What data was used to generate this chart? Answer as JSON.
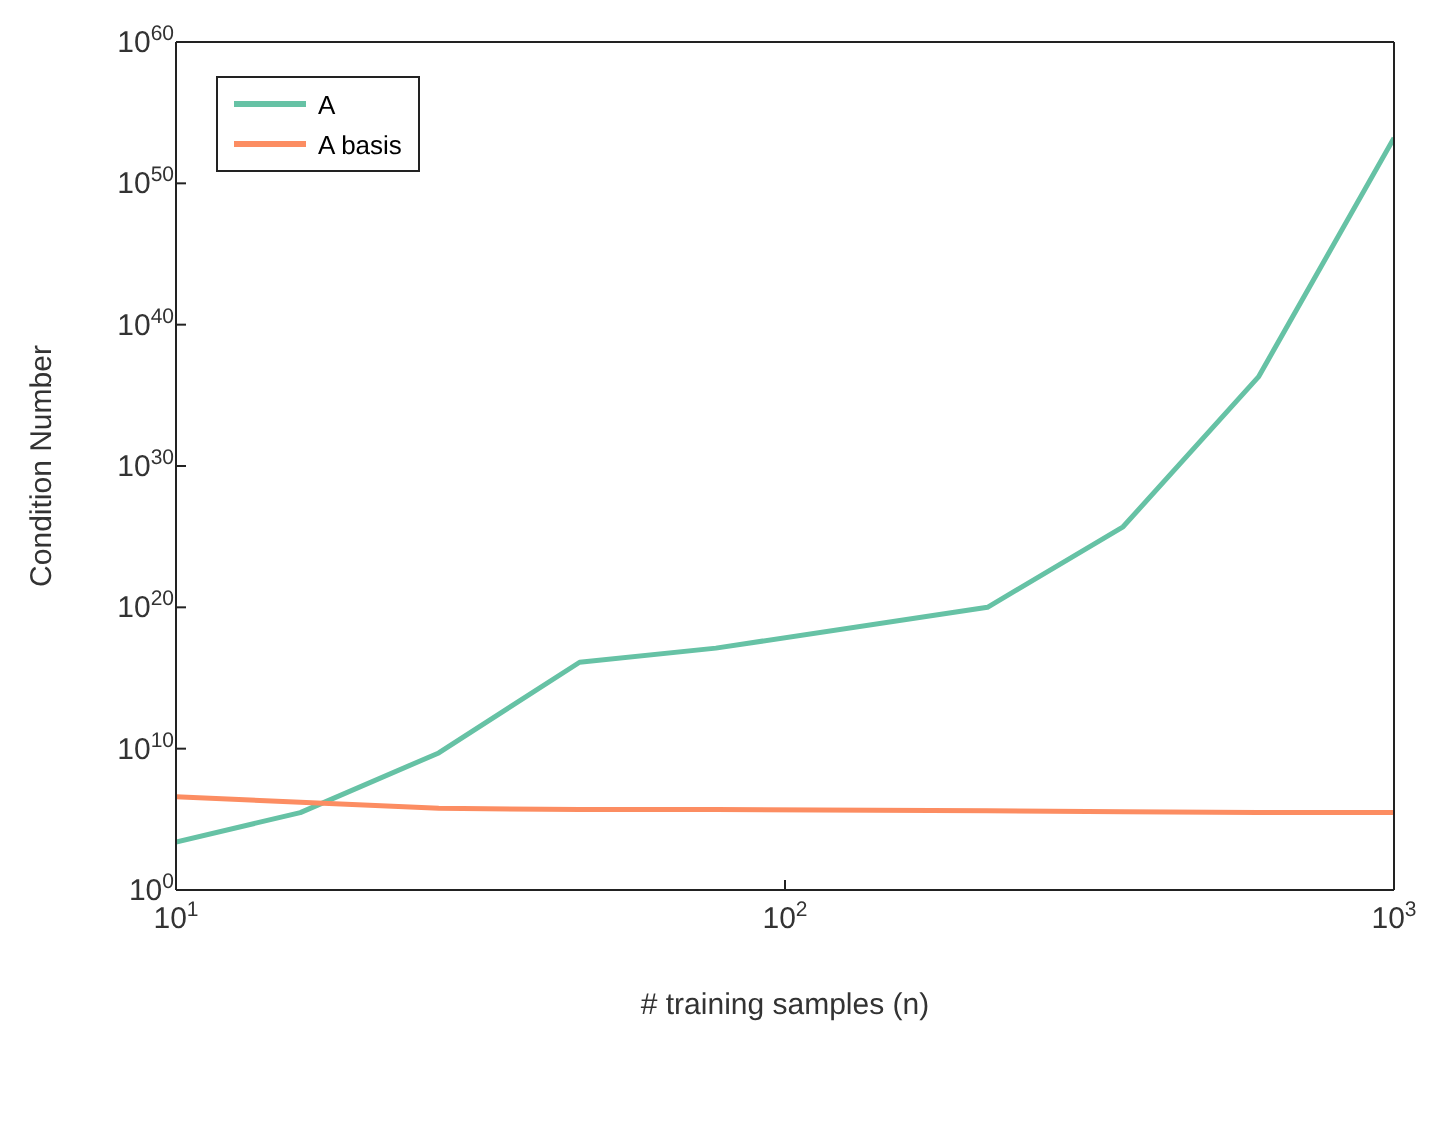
{
  "chart_data": {
    "type": "line",
    "xlabel": "# training samples (n)",
    "ylabel": "Condition Number",
    "x": [
      10,
      16,
      27,
      46,
      77,
      215,
      359,
      599,
      1000
    ],
    "series": [
      {
        "name": "A",
        "color": "#66c2a5",
        "values": [
          2500.0,
          300000.0,
          5000000000.0,
          1.3e+16,
          1.3e+17,
          1e+20,
          5e+25,
          2e+36,
          1.6e+53
        ]
      },
      {
        "name": "A basis",
        "color": "#fc8d62",
        "values": [
          4000000.0,
          1600000.0,
          600000.0,
          500000.0,
          500000.0,
          400000.0,
          350000.0,
          300000.0,
          300000.0
        ]
      }
    ],
    "log": "xy",
    "xlim": [
      10,
      1000
    ],
    "ylim": [
      1,
      1e+60
    ],
    "xticks": [
      {
        "value": 10,
        "label": "10$^{1}$"
      },
      {
        "value": 100,
        "label": "10$^{2}$"
      },
      {
        "value": 1000,
        "label": "10$^{3}$"
      }
    ],
    "yticks": [
      {
        "value": 1,
        "label": "10$^{0}$"
      },
      {
        "value": 10000000000.0,
        "label": "10$^{10}$"
      },
      {
        "value": 1e+20,
        "label": "10$^{20}$"
      },
      {
        "value": 1e+30,
        "label": "10$^{30}$"
      },
      {
        "value": 1e+40,
        "label": "10$^{40}$"
      },
      {
        "value": 1e+50,
        "label": "10$^{50}$"
      },
      {
        "value": 1e+60,
        "label": "10$^{60}$"
      }
    ],
    "grid": false,
    "legend": "top left",
    "marker": "none",
    "line_style": "solid"
  }
}
